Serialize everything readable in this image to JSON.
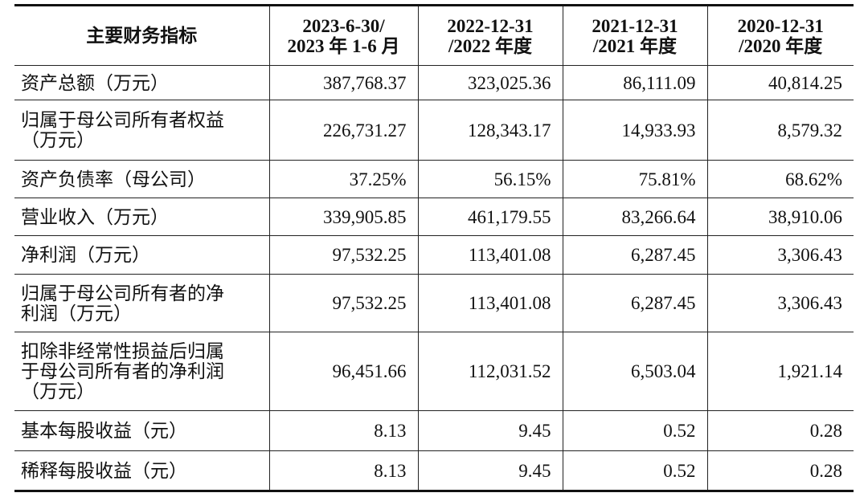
{
  "table": {
    "header": [
      [
        "主要财务指标"
      ],
      [
        "2023-6-30/",
        "2023 年 1-6 月"
      ],
      [
        "2022-12-31",
        "/2022 年度"
      ],
      [
        "2021-12-31",
        "/2021 年度"
      ],
      [
        "2020-12-31",
        "/2020 年度"
      ]
    ],
    "rows": [
      [
        "资产总额（万元）",
        "387,768.37",
        "323,025.36",
        "86,111.09",
        "40,814.25"
      ],
      [
        "归属于母公司所有者权益（万元）",
        "226,731.27",
        "128,343.17",
        "14,933.93",
        "8,579.32"
      ],
      [
        "资产负债率（母公司）",
        "37.25%",
        "56.15%",
        "75.81%",
        "68.62%"
      ],
      [
        "营业收入（万元）",
        "339,905.85",
        "461,179.55",
        "83,266.64",
        "38,910.06"
      ],
      [
        "净利润（万元）",
        "97,532.25",
        "113,401.08",
        "6,287.45",
        "3,306.43"
      ],
      [
        "归属于母公司所有者的净利润（万元）",
        "97,532.25",
        "113,401.08",
        "6,287.45",
        "3,306.43"
      ],
      [
        "扣除非经常性损益后归属于母公司所有者的净利润（万元）",
        "96,451.66",
        "112,031.52",
        "6,503.04",
        "1,921.14"
      ],
      [
        "基本每股收益（元）",
        "8.13",
        "9.45",
        "0.52",
        "0.28"
      ],
      [
        "稀释每股收益（元）",
        "8.13",
        "9.45",
        "0.52",
        "0.28"
      ]
    ]
  }
}
